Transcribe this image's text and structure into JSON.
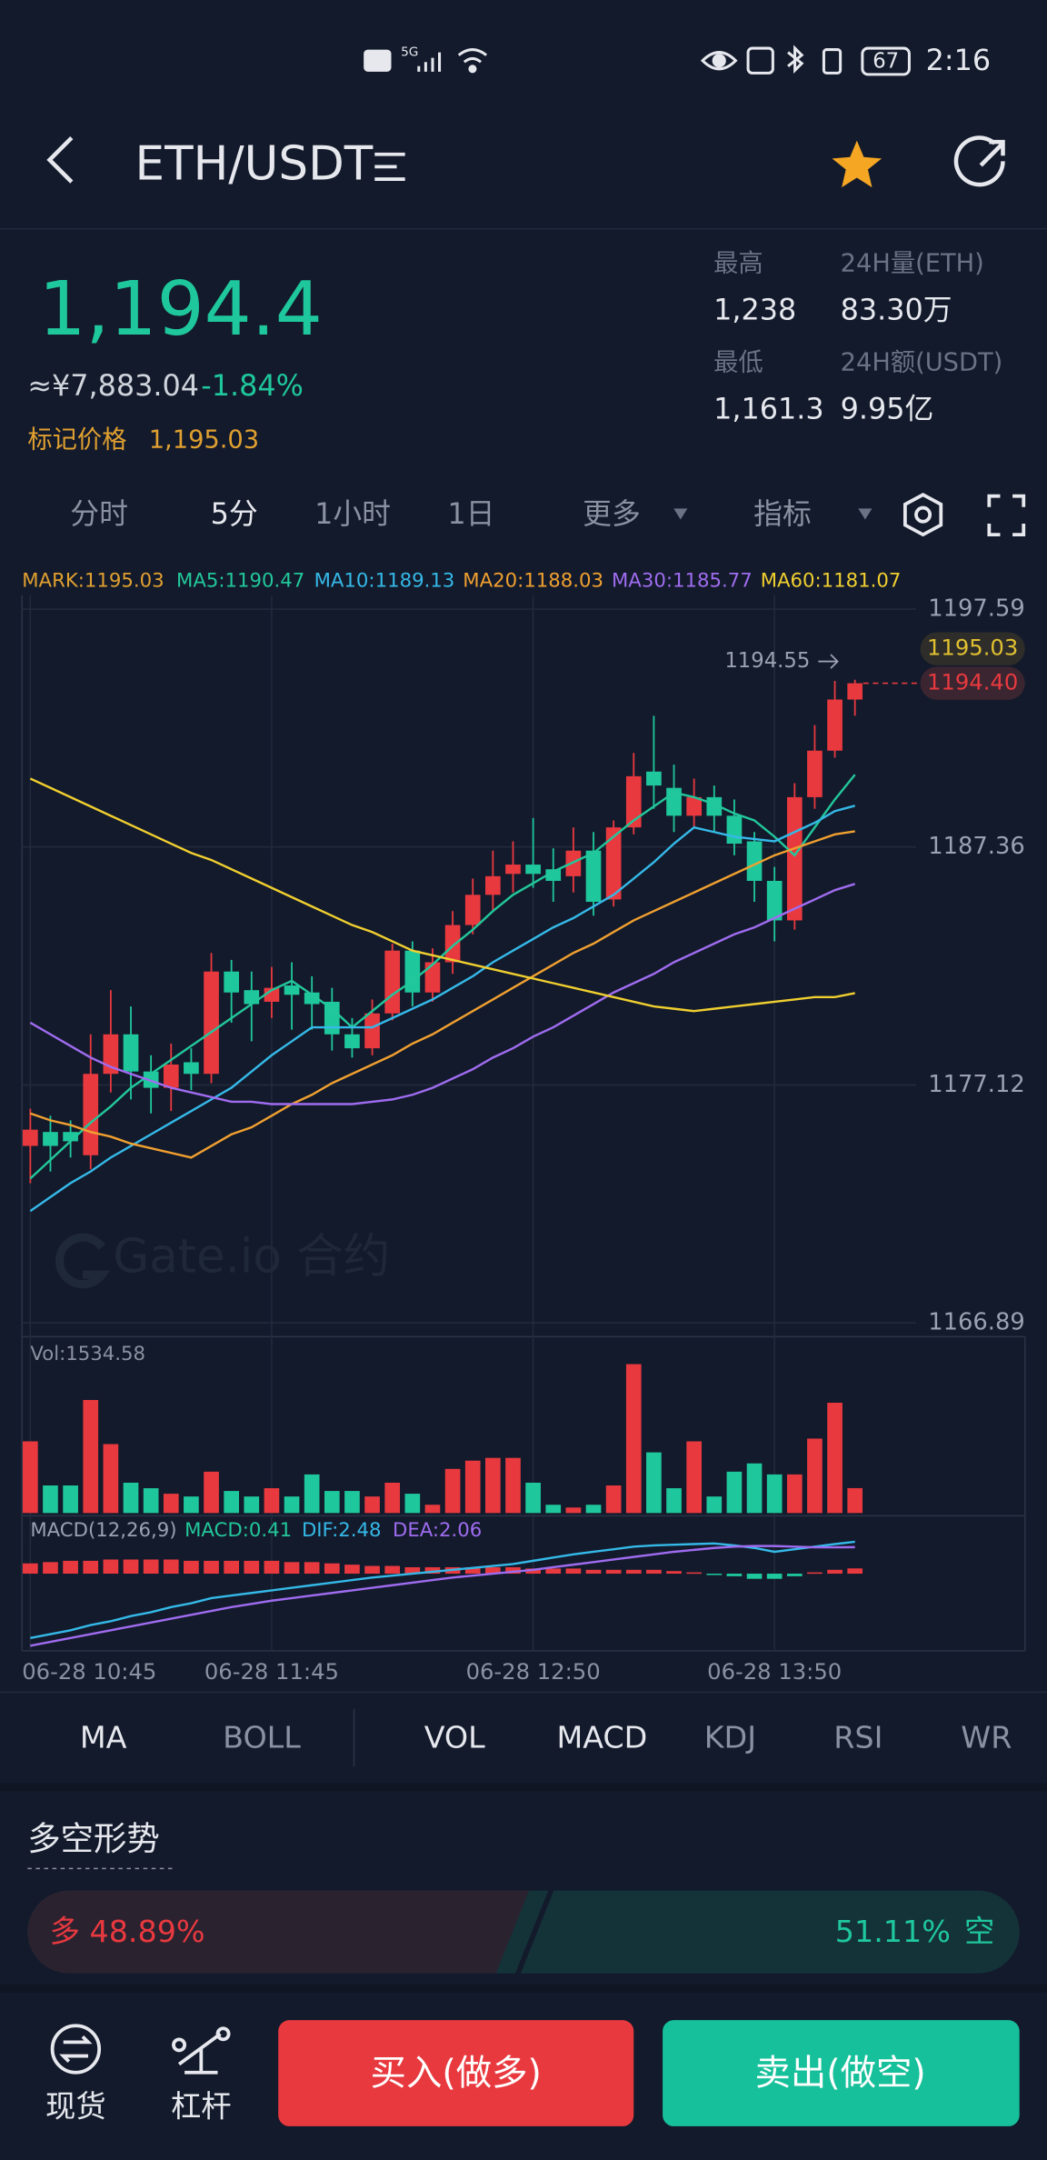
{
  "status_bar": {
    "network": "5G",
    "battery": "67",
    "time": "2:16"
  },
  "header": {
    "pair": "ETH/USDT"
  },
  "ticker": {
    "last": "1,194.4",
    "cny": "≈¥7,883.04",
    "change": "-1.84%",
    "mark_label": "标记价格",
    "mark_price": "1,195.03",
    "stats": [
      {
        "label": "最高",
        "value": "1,238"
      },
      {
        "label": "24H量(ETH)",
        "value": "83.30万"
      },
      {
        "label": "最低",
        "value": "1,161.3"
      },
      {
        "label": "24H额(USDT)",
        "value": "9.95亿"
      }
    ]
  },
  "timeframes": {
    "items": [
      "分时",
      "5分",
      "1小时",
      "1日",
      "更多",
      "指标"
    ],
    "active": 1
  },
  "chart": {
    "type": "candlestick",
    "ylim": [
      1166.89,
      1197.59
    ],
    "yticks": [
      1197.59,
      1187.36,
      1177.12,
      1166.89
    ],
    "up_color": "#e8393f",
    "down_color": "#1fc79c",
    "categories": [
      "06-28 10:45",
      null,
      null,
      null,
      null,
      null,
      null,
      null,
      null,
      null,
      null,
      null,
      "06-28 11:45",
      null,
      null,
      null,
      null,
      null,
      null,
      null,
      null,
      null,
      null,
      null,
      null,
      "06-28 12:50",
      null,
      null,
      null,
      null,
      null,
      null,
      null,
      null,
      null,
      null,
      null,
      "06-28 13:50",
      null,
      null,
      null,
      null
    ],
    "candles": [
      {
        "open": 1174.5,
        "close": 1175.2,
        "high": 1176.1,
        "low": 1172.9
      },
      {
        "open": 1175.1,
        "close": 1174.5,
        "high": 1175.8,
        "low": 1173.4
      },
      {
        "open": 1175.1,
        "close": 1174.7,
        "high": 1175.6,
        "low": 1174.0
      },
      {
        "open": 1174.1,
        "close": 1177.6,
        "high": 1179.3,
        "low": 1173.5
      },
      {
        "open": 1177.6,
        "close": 1179.3,
        "high": 1181.2,
        "low": 1176.8
      },
      {
        "open": 1179.3,
        "close": 1177.7,
        "high": 1180.5,
        "low": 1176.5
      },
      {
        "open": 1177.7,
        "close": 1177.0,
        "high": 1178.4,
        "low": 1175.9
      },
      {
        "open": 1177.0,
        "close": 1178.0,
        "high": 1178.9,
        "low": 1176.0
      },
      {
        "open": 1178.1,
        "close": 1177.6,
        "high": 1178.7,
        "low": 1176.9
      },
      {
        "open": 1177.6,
        "close": 1182.0,
        "high": 1182.8,
        "low": 1177.2
      },
      {
        "open": 1182.0,
        "close": 1181.1,
        "high": 1182.5,
        "low": 1179.8
      },
      {
        "open": 1181.2,
        "close": 1180.6,
        "high": 1182.0,
        "low": 1179.0
      },
      {
        "open": 1180.7,
        "close": 1181.3,
        "high": 1182.2,
        "low": 1180.0
      },
      {
        "open": 1181.4,
        "close": 1181.0,
        "high": 1182.4,
        "low": 1179.5
      },
      {
        "open": 1181.1,
        "close": 1180.6,
        "high": 1181.8,
        "low": 1179.5
      },
      {
        "open": 1180.7,
        "close": 1179.3,
        "high": 1181.3,
        "low": 1178.6
      },
      {
        "open": 1179.3,
        "close": 1178.7,
        "high": 1180.0,
        "low": 1178.3
      },
      {
        "open": 1178.7,
        "close": 1180.2,
        "high": 1180.8,
        "low": 1178.4
      },
      {
        "open": 1180.2,
        "close": 1182.9,
        "high": 1183.2,
        "low": 1179.9
      },
      {
        "open": 1182.9,
        "close": 1181.1,
        "high": 1183.3,
        "low": 1180.5
      },
      {
        "open": 1181.1,
        "close": 1182.4,
        "high": 1183.0,
        "low": 1180.7
      },
      {
        "open": 1182.4,
        "close": 1184.0,
        "high": 1184.6,
        "low": 1181.9
      },
      {
        "open": 1184.0,
        "close": 1185.3,
        "high": 1186.0,
        "low": 1183.6
      },
      {
        "open": 1185.3,
        "close": 1186.1,
        "high": 1187.2,
        "low": 1184.6
      },
      {
        "open": 1186.2,
        "close": 1186.6,
        "high": 1187.6,
        "low": 1185.4
      },
      {
        "open": 1186.6,
        "close": 1186.2,
        "high": 1188.6,
        "low": 1185.6
      },
      {
        "open": 1186.4,
        "close": 1185.9,
        "high": 1187.3,
        "low": 1185.0
      },
      {
        "open": 1186.1,
        "close": 1187.2,
        "high": 1188.2,
        "low": 1185.4
      },
      {
        "open": 1187.2,
        "close": 1185.0,
        "high": 1188.0,
        "low": 1184.4
      },
      {
        "open": 1185.1,
        "close": 1188.2,
        "high": 1188.5,
        "low": 1184.8
      },
      {
        "open": 1188.2,
        "close": 1190.4,
        "high": 1191.4,
        "low": 1187.9
      },
      {
        "open": 1190.6,
        "close": 1190.0,
        "high": 1193.0,
        "low": 1189.0
      },
      {
        "open": 1189.9,
        "close": 1188.7,
        "high": 1190.9,
        "low": 1188.0
      },
      {
        "open": 1188.7,
        "close": 1189.5,
        "high": 1190.3,
        "low": 1188.2
      },
      {
        "open": 1189.5,
        "close": 1188.7,
        "high": 1190.0,
        "low": 1188.0
      },
      {
        "open": 1188.7,
        "close": 1187.5,
        "high": 1189.4,
        "low": 1187.0
      },
      {
        "open": 1187.6,
        "close": 1185.9,
        "high": 1188.0,
        "low": 1185.0
      },
      {
        "open": 1185.9,
        "close": 1184.2,
        "high": 1186.5,
        "low": 1183.3
      },
      {
        "open": 1184.2,
        "close": 1189.5,
        "high": 1190.1,
        "low": 1183.8
      },
      {
        "open": 1189.5,
        "close": 1191.5,
        "high": 1192.6,
        "low": 1189.0
      },
      {
        "open": 1191.5,
        "close": 1193.7,
        "high": 1194.5,
        "low": 1191.2
      },
      {
        "open": 1193.7,
        "close": 1194.4,
        "high": 1194.55,
        "low": 1193.0
      }
    ],
    "legend": [
      {
        "text": "MARK:1195.03",
        "color": "#e0a030"
      },
      {
        "text": "MA5:1190.47",
        "color": "#22c79b",
        "values": [
          1173.1,
          1173.9,
          1174.7,
          1175.5,
          1176.2,
          1177.0,
          1177.6,
          1178.2,
          1178.8,
          1179.4,
          1180.0,
          1180.6,
          1181.2,
          1181.6,
          1181.0,
          1180.4,
          1179.6,
          1180.3,
          1181.0,
          1181.6,
          1182.3,
          1183.1,
          1183.8,
          1184.6,
          1185.3,
          1185.8,
          1186.3,
          1186.7,
          1187.1,
          1187.8,
          1188.5,
          1189.1,
          1189.7,
          1189.5,
          1189.2,
          1188.8,
          1188.5,
          1187.8,
          1187.0,
          1188.2,
          1189.4,
          1190.47
        ]
      },
      {
        "text": "MA10:1189.13",
        "color": "#35b9e8",
        "values": [
          1171.7,
          1172.3,
          1172.9,
          1173.4,
          1174.0,
          1174.5,
          1175.0,
          1175.5,
          1176.0,
          1176.5,
          1177.0,
          1177.7,
          1178.4,
          1179.0,
          1179.6,
          1179.6,
          1179.6,
          1179.6,
          1180.0,
          1180.4,
          1180.8,
          1181.3,
          1181.8,
          1182.4,
          1182.9,
          1183.4,
          1183.9,
          1184.3,
          1184.8,
          1185.3,
          1186.0,
          1186.7,
          1187.5,
          1188.2,
          1188.0,
          1187.8,
          1187.7,
          1187.6,
          1188.0,
          1188.4,
          1188.9,
          1189.13
        ]
      },
      {
        "text": "MA20:1188.03",
        "color": "#f0a030",
        "values": [
          1175.9,
          1175.6,
          1175.4,
          1175.1,
          1174.9,
          1174.6,
          1174.4,
          1174.2,
          1174.0,
          1174.5,
          1175.0,
          1175.3,
          1175.8,
          1176.3,
          1176.7,
          1177.2,
          1177.6,
          1178.0,
          1178.4,
          1178.9,
          1179.3,
          1179.8,
          1180.3,
          1180.8,
          1181.3,
          1181.8,
          1182.3,
          1182.8,
          1183.2,
          1183.7,
          1184.2,
          1184.6,
          1185.0,
          1185.4,
          1185.8,
          1186.2,
          1186.6,
          1187.0,
          1187.3,
          1187.6,
          1187.9,
          1188.03
        ]
      },
      {
        "text": "MA30:1185.77",
        "color": "#9f6cf0",
        "values": [
          1179.8,
          1179.3,
          1178.8,
          1178.3,
          1177.9,
          1177.6,
          1177.3,
          1177.0,
          1176.8,
          1176.6,
          1176.4,
          1176.4,
          1176.3,
          1176.3,
          1176.3,
          1176.3,
          1176.3,
          1176.4,
          1176.5,
          1176.7,
          1177.0,
          1177.4,
          1177.8,
          1178.3,
          1178.7,
          1179.2,
          1179.6,
          1180.1,
          1180.6,
          1181.1,
          1181.5,
          1181.9,
          1182.4,
          1182.8,
          1183.2,
          1183.6,
          1183.9,
          1184.3,
          1184.7,
          1185.1,
          1185.5,
          1185.77
        ]
      },
      {
        "text": "MA60:1181.07",
        "color": "#f0cf30",
        "values": [
          1190.3,
          1189.9,
          1189.5,
          1189.1,
          1188.7,
          1188.3,
          1187.9,
          1187.5,
          1187.1,
          1186.8,
          1186.4,
          1186.0,
          1185.6,
          1185.2,
          1184.8,
          1184.4,
          1184.0,
          1183.7,
          1183.3,
          1182.9,
          1182.7,
          1182.5,
          1182.3,
          1182.1,
          1181.9,
          1181.7,
          1181.5,
          1181.3,
          1181.1,
          1180.9,
          1180.7,
          1180.5,
          1180.4,
          1180.3,
          1180.4,
          1180.5,
          1180.6,
          1180.7,
          1180.8,
          1180.9,
          1180.9,
          1181.07
        ]
      }
    ],
    "price_tags": {
      "high": "1194.55",
      "mark": "1195.03",
      "last": "1194.40"
    },
    "watermark": "Gate.io 合约"
  },
  "volume": {
    "label": "Vol:1534.58",
    "ylim": [
      0,
      9600
    ],
    "values": [
      4420,
      1700,
      1700,
      6970,
      4250,
      1870,
      1530,
      1190,
      1020,
      2550,
      1360,
      1020,
      1530,
      1020,
      2380,
      1360,
      1360,
      1020,
      1870,
      1190,
      510,
      2720,
      3230,
      3400,
      3400,
      1870,
      510,
      340,
      510,
      1700,
      9180,
      3740,
      1530,
      4420,
      1020,
      2550,
      3060,
      2380,
      2380,
      4590,
      6800,
      1534.58
    ]
  },
  "macd": {
    "legend": [
      {
        "text": "MACD(12,26,9)",
        "color": "#9aa1b0"
      },
      {
        "text": "MACD:0.41",
        "color": "#22c79b"
      },
      {
        "text": "DIF:2.48",
        "color": "#35b9e8"
      },
      {
        "text": "DEA:2.06",
        "color": "#9f6cf0"
      }
    ],
    "ylim": [
      -6,
      4.5
    ],
    "hist": [
      0.8,
      0.9,
      1.0,
      1.0,
      1.1,
      1.1,
      1.1,
      1.1,
      1.0,
      1.0,
      1.0,
      1.0,
      1.0,
      0.9,
      0.9,
      0.8,
      0.7,
      0.6,
      0.6,
      0.5,
      0.5,
      0.5,
      0.5,
      0.5,
      0.5,
      0.4,
      0.4,
      0.4,
      0.3,
      0.3,
      0.3,
      0.3,
      0.2,
      0.1,
      -0.1,
      -0.2,
      -0.4,
      -0.4,
      -0.2,
      0.1,
      0.3,
      0.41
    ],
    "dif": [
      -5.0,
      -4.7,
      -4.4,
      -4.0,
      -3.7,
      -3.3,
      -3.0,
      -2.6,
      -2.3,
      -1.9,
      -1.7,
      -1.5,
      -1.3,
      -1.1,
      -0.9,
      -0.7,
      -0.5,
      -0.3,
      -0.15,
      0.0,
      0.15,
      0.3,
      0.45,
      0.6,
      0.75,
      1.0,
      1.25,
      1.5,
      1.7,
      1.9,
      2.1,
      2.2,
      2.25,
      2.3,
      2.35,
      2.2,
      2.0,
      1.7,
      1.9,
      2.1,
      2.3,
      2.48
    ],
    "dea": [
      -5.6,
      -5.3,
      -5.0,
      -4.7,
      -4.4,
      -4.1,
      -3.8,
      -3.5,
      -3.2,
      -2.9,
      -2.6,
      -2.35,
      -2.1,
      -1.9,
      -1.7,
      -1.5,
      -1.3,
      -1.1,
      -0.9,
      -0.7,
      -0.5,
      -0.3,
      -0.15,
      0.0,
      0.15,
      0.3,
      0.5,
      0.7,
      0.9,
      1.1,
      1.3,
      1.5,
      1.7,
      1.85,
      2.0,
      2.1,
      2.15,
      2.15,
      2.1,
      2.05,
      2.05,
      2.06
    ]
  },
  "indicator_tabs": {
    "items": [
      "MA",
      "BOLL",
      "VOL",
      "MACD",
      "KDJ",
      "RSI",
      "WR"
    ],
    "active": [
      0,
      2,
      3
    ]
  },
  "sentiment": {
    "title": "多空形势",
    "long_label": "多",
    "long_value": 48.89,
    "long_text": "48.89%",
    "short_value": 51.11,
    "short_text": "51.11%",
    "short_label": "空"
  },
  "bottom_nav": {
    "items": [
      "现货",
      "杠杆"
    ],
    "buy": "买入(做多)",
    "sell": "卖出(做空)"
  }
}
